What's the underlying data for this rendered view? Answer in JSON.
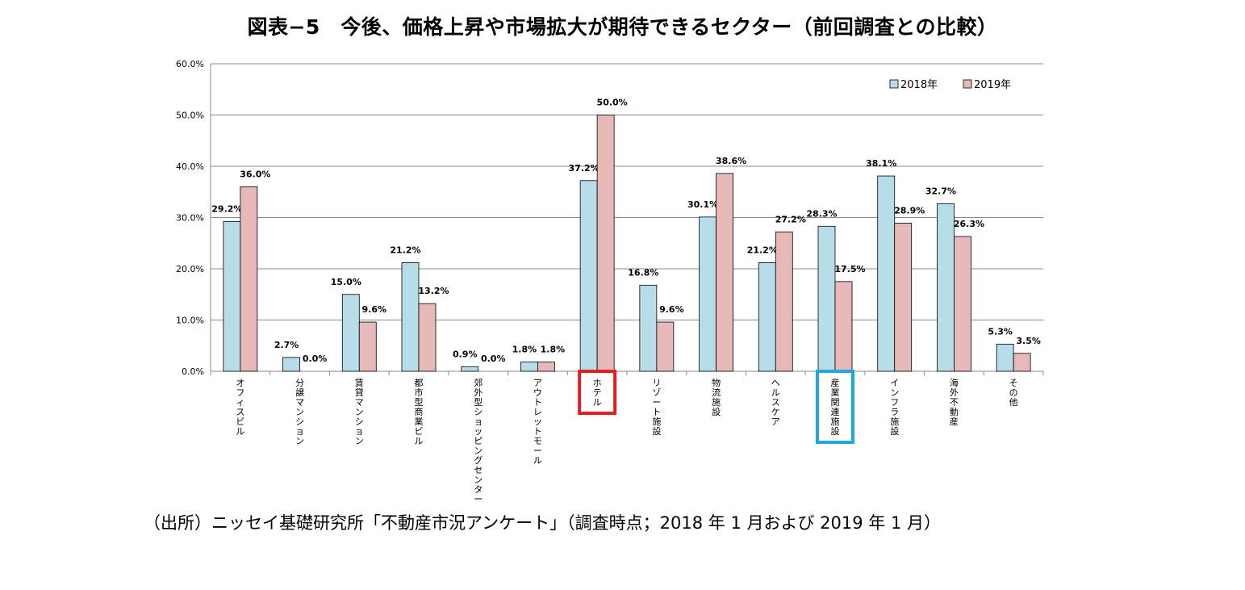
{
  "title": "図表−5　今後、価格上昇や市場拡大が期待できるセクター（前回調査との比較）",
  "source": "（出所）ニッセイ基礎研究所「不動産市況アンケート」（調査時点；2018 年 1 月および 2019 年 1 月）",
  "chart_data": {
    "type": "bar",
    "categories": [
      "オフィスビル",
      "分譲マンション",
      "賃貸マンション",
      "都市型商業ビル",
      "郊外型ショッピングセンター",
      "アウトレットモール",
      "ホテル",
      "リゾート施設",
      "物流施設",
      "ヘルスケア",
      "産業関連施設",
      "インフラ施設",
      "海外不動産",
      "その他"
    ],
    "series": [
      {
        "name": "2018年",
        "color": "#b7dde8",
        "values": [
          29.2,
          2.7,
          15.0,
          21.2,
          0.9,
          1.8,
          37.2,
          16.8,
          30.1,
          21.2,
          28.3,
          38.1,
          32.7,
          5.3
        ],
        "labels": [
          "29.2%",
          "2.7%",
          "15.0%",
          "21.2%",
          "0.9%",
          "1.8%",
          "37.2%",
          "16.8%",
          "30.1%",
          "21.2%",
          "28.3%",
          "38.1%",
          "32.7%",
          "5.3%"
        ]
      },
      {
        "name": "2019年",
        "color": "#e6b9b8",
        "values": [
          36.0,
          0.0,
          9.6,
          13.2,
          0.0,
          1.8,
          50.0,
          9.6,
          38.6,
          27.2,
          17.5,
          28.9,
          26.3,
          3.5
        ],
        "labels": [
          "36.0%",
          "0.0%",
          "9.6%",
          "13.2%",
          "0.0%",
          "1.8%",
          "50.0%",
          "9.6%",
          "38.6%",
          "27.2%",
          "17.5%",
          "28.9%",
          "26.3%",
          "3.5%"
        ]
      }
    ],
    "ylim": [
      0,
      60
    ],
    "yticks": [
      0,
      10,
      20,
      30,
      40,
      50,
      60
    ],
    "ytick_labels": [
      "0.0%",
      "10.0%",
      "20.0%",
      "30.0%",
      "40.0%",
      "50.0%",
      "60.0%"
    ],
    "grid": true,
    "legend_position": "top-right",
    "highlights": [
      {
        "category": "ホテル",
        "color": "#e02020"
      },
      {
        "category": "産業関連施設",
        "color": "#21a6dd"
      }
    ]
  }
}
